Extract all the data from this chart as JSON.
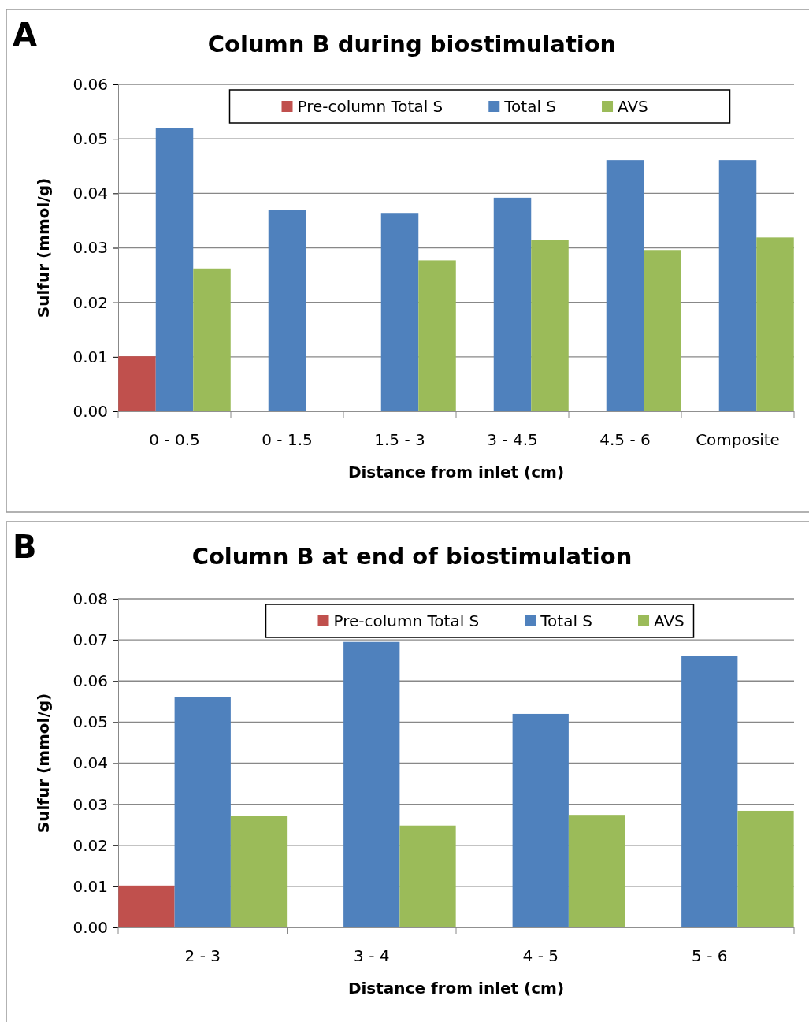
{
  "chart_data": [
    {
      "type": "bar",
      "title": "Column B during biostimulation",
      "xlabel": "Distance from inlet (cm)",
      "ylabel": "Sulfur (mmol/g)",
      "annotations": [
        "A"
      ],
      "categories": [
        "0 - 0.5",
        "0 - 1.5",
        "1.5 - 3",
        "3 - 4.5",
        "4.5 - 6",
        "Composite"
      ],
      "series": [
        {
          "name": "Pre-column Total S",
          "color": "#c0504d",
          "values": [
            0.0101,
            null,
            null,
            null,
            null,
            null
          ]
        },
        {
          "name": "Total S",
          "color": "#4f81bd",
          "values": [
            0.052,
            0.037,
            0.0364,
            0.0392,
            0.0461,
            0.0461
          ]
        },
        {
          "name": "AVS",
          "color": "#9bbb59",
          "values": [
            0.0262,
            null,
            0.0277,
            0.0314,
            0.0296,
            0.0319
          ]
        }
      ],
      "ylim": [
        0,
        0.06
      ],
      "yticks": [
        {
          "value": 0,
          "label": "0.00"
        },
        0.01,
        0.02,
        0.03,
        0.04,
        0.05,
        0.06
      ],
      "grid": "y",
      "legend": "top"
    },
    {
      "type": "bar",
      "title": "Column B at end of biostimulation",
      "xlabel": "Distance from inlet (cm)",
      "ylabel": "Sulfur (mmol/g)",
      "annotations": [
        "B"
      ],
      "categories": [
        "2 - 3",
        "3 - 4",
        "4 - 5",
        "5 - 6"
      ],
      "series": [
        {
          "name": "Pre-column Total S",
          "color": "#c0504d",
          "values": [
            0.0102,
            null,
            null,
            null
          ]
        },
        {
          "name": "Total S",
          "color": "#4f81bd",
          "values": [
            0.0562,
            0.0695,
            0.052,
            0.066
          ]
        },
        {
          "name": "AVS",
          "color": "#9bbb59",
          "values": [
            0.0271,
            0.0248,
            0.0274,
            0.0284
          ]
        }
      ],
      "ylim": [
        0,
        0.08
      ],
      "yticks": [
        {
          "value": 0,
          "label": "0.00"
        },
        0.01,
        0.02,
        0.03,
        0.04,
        0.05,
        0.06,
        0.07,
        0.08
      ],
      "grid": "y",
      "legend": "top"
    }
  ]
}
